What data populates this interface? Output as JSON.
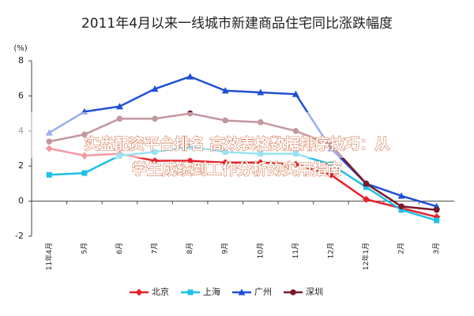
{
  "chart_data": {
    "type": "line",
    "title": "2011年4月以来一线城市新建商品住宅同比涨跌幅度",
    "y_label": "(%)",
    "categories": [
      "11年4月",
      "5月",
      "6月",
      "7月",
      "8月",
      "9月",
      "10月",
      "11月",
      "12月",
      "12年1月",
      "2月",
      "3月"
    ],
    "series": [
      {
        "name": "北京",
        "color": "#e8202a",
        "marker": "diamond",
        "values": [
          3.0,
          2.6,
          2.7,
          2.3,
          2.3,
          2.2,
          2.2,
          2.1,
          1.5,
          0.1,
          -0.4,
          -0.9
        ]
      },
      {
        "name": "上海",
        "color": "#1ec0e8",
        "marker": "square",
        "values": [
          1.5,
          1.6,
          2.6,
          2.8,
          3.1,
          2.8,
          2.7,
          2.7,
          2.1,
          0.8,
          -0.5,
          -1.1
        ]
      },
      {
        "name": "广州",
        "color": "#1f4fd8",
        "marker": "triangle",
        "values": [
          3.9,
          5.1,
          5.4,
          6.4,
          7.1,
          6.3,
          6.2,
          6.1,
          3.0,
          1.0,
          0.3,
          -0.3
        ]
      },
      {
        "name": "深圳",
        "color": "#7a1a2a",
        "marker": "circle",
        "values": [
          3.4,
          3.8,
          4.7,
          4.7,
          5.0,
          4.6,
          4.5,
          4.0,
          3.2,
          1.0,
          -0.3,
          -0.5
        ]
      }
    ],
    "ylim": [
      -2,
      8
    ],
    "yticks": [
      -2,
      0,
      2,
      4,
      6,
      8
    ],
    "legend": "bottom"
  },
  "banner": {
    "lines": [
      "实盘配资平台排名  高效表格数据排序技巧：从",
      "学生成绩到工作分析的实用指南"
    ]
  }
}
